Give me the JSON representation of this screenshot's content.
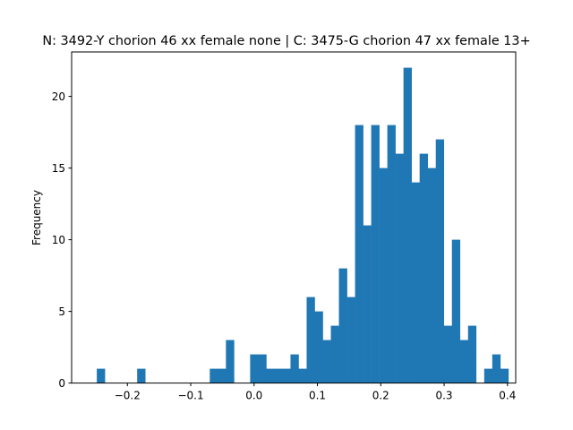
{
  "chart_data": {
    "type": "bar",
    "subtype": "histogram",
    "title": "N: 3492-Y chorion 46 xx female none | C: 3475-G chorion 47 xx female 13+",
    "xlabel": "",
    "ylabel": "Frequency",
    "bin_start": -0.261,
    "bin_width": 0.01274,
    "counts": [
      0,
      1,
      0,
      0,
      0,
      0,
      1,
      0,
      0,
      0,
      0,
      0,
      0,
      0,
      0,
      1,
      1,
      3,
      0,
      0,
      2,
      2,
      1,
      1,
      1,
      2,
      1,
      6,
      5,
      3,
      4,
      8,
      6,
      18,
      11,
      18,
      15,
      18,
      16,
      22,
      14,
      16,
      15,
      17,
      4,
      10,
      3,
      4,
      0,
      1,
      2,
      1
    ],
    "xlim": [
      -0.288,
      0.413
    ],
    "ylim": [
      0,
      23.1
    ],
    "xticks": [
      -0.2,
      -0.1,
      0.0,
      0.1,
      0.2,
      0.3,
      0.4
    ],
    "xtick_labels": [
      "−0.2",
      "−0.1",
      "0.0",
      "0.1",
      "0.2",
      "0.3",
      "0.4"
    ],
    "yticks": [
      0,
      5,
      10,
      15,
      20
    ],
    "ytick_labels": [
      "0",
      "5",
      "10",
      "15",
      "20"
    ],
    "color": "#1f77b4",
    "grid": false,
    "legend": "none"
  }
}
